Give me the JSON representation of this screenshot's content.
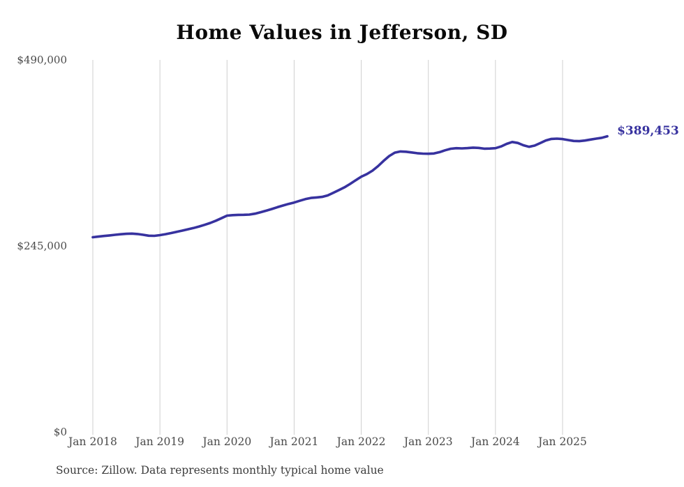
{
  "title": "Home Values in Jefferson, SD",
  "source_note": "Source: Zillow. Data represents monthly typical home value",
  "colors": {
    "line": "#37329f",
    "end_label": "#37329f",
    "grid": "#cfcfcf",
    "title": "#0a0a0a",
    "tick_label": "#4a4a4a",
    "source": "#3c3c3c"
  },
  "chart_data": {
    "type": "line",
    "title": "Home Values in Jefferson, SD",
    "xlabel": "",
    "ylabel": "",
    "x_start": "2018-01",
    "x_interval": "monthly",
    "x_end": "2025-09",
    "ylim": [
      0,
      490000
    ],
    "grid": "vertical-only",
    "legend": "none",
    "last_value_label": "$389,453",
    "yticks": [
      {
        "value": 0,
        "label": "$0"
      },
      {
        "value": 245000,
        "label": "$245,000"
      },
      {
        "value": 490000,
        "label": "$490,000"
      }
    ],
    "xticks": [
      {
        "month_index": 0,
        "label": "Jan 2018"
      },
      {
        "month_index": 12,
        "label": "Jan 2019"
      },
      {
        "month_index": 24,
        "label": "Jan 2020"
      },
      {
        "month_index": 36,
        "label": "Jan 2021"
      },
      {
        "month_index": 48,
        "label": "Jan 2022"
      },
      {
        "month_index": 60,
        "label": "Jan 2023"
      },
      {
        "month_index": 72,
        "label": "Jan 2024"
      },
      {
        "month_index": 84,
        "label": "Jan 2025"
      }
    ],
    "series": [
      {
        "name": "Typical home value",
        "values": [
          256500,
          257300,
          258100,
          258900,
          259700,
          260400,
          261000,
          261200,
          260700,
          259700,
          258500,
          258300,
          259200,
          260500,
          262000,
          263600,
          265200,
          266900,
          268600,
          270600,
          272800,
          275300,
          278200,
          281500,
          284900,
          285600,
          285900,
          286000,
          286300,
          287500,
          289400,
          291400,
          293600,
          296000,
          298200,
          300300,
          302200,
          304500,
          306700,
          308200,
          308900,
          309600,
          311500,
          314900,
          318500,
          322200,
          326700,
          331500,
          336200,
          339600,
          344100,
          350100,
          357000,
          363400,
          367900,
          369400,
          369100,
          368100,
          367100,
          366600,
          366400,
          366800,
          368500,
          371000,
          373000,
          373700,
          373500,
          373800,
          374500,
          374100,
          373100,
          373300,
          373700,
          376000,
          379400,
          381900,
          380600,
          377600,
          375600,
          377100,
          380400,
          383900,
          385900,
          386300,
          385800,
          384500,
          383300,
          383000,
          383800,
          385100,
          386300,
          387400,
          389453
        ]
      }
    ]
  }
}
